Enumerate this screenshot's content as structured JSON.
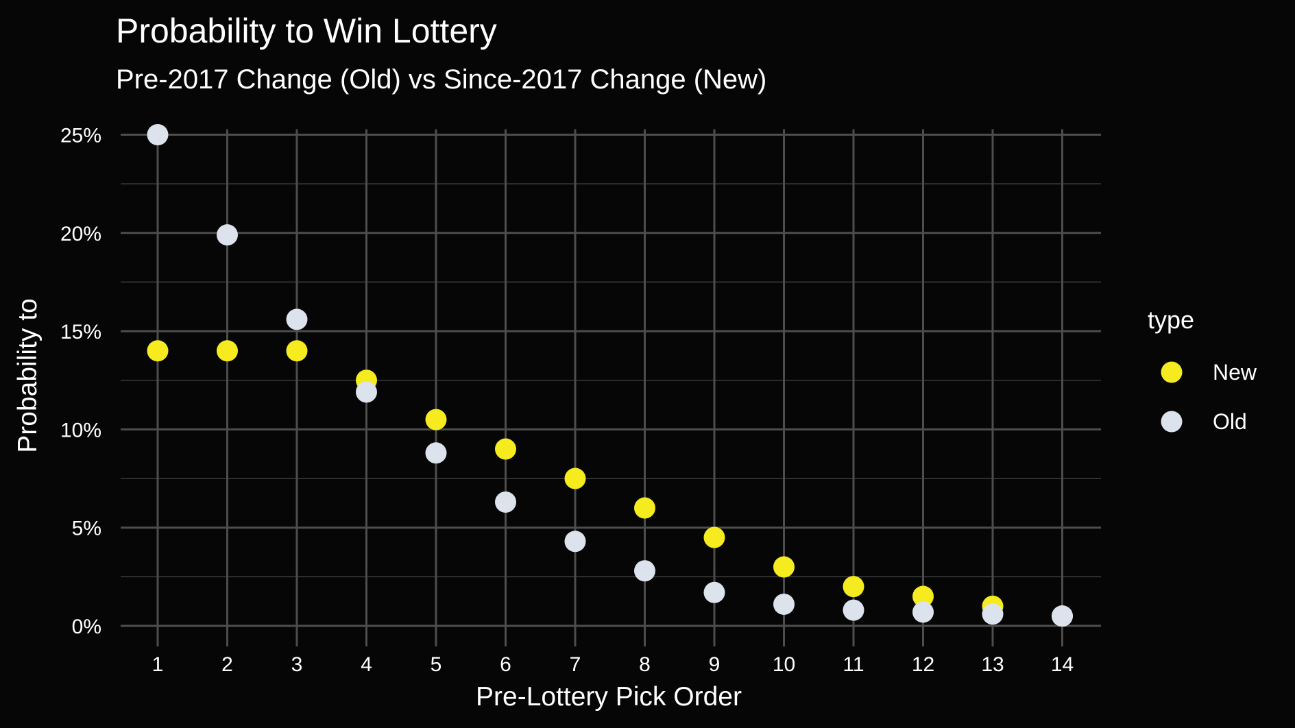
{
  "chart_data": {
    "type": "scatter",
    "title": "Probability to Win Lottery",
    "subtitle": "Pre-2017 Change (Old) vs Since-2017 Change (New)",
    "xlabel": "Pre-Lottery Pick Order",
    "ylabel": "Probability to",
    "x": [
      1,
      2,
      3,
      4,
      5,
      6,
      7,
      8,
      9,
      10,
      11,
      12,
      13,
      14
    ],
    "x_ticks": [
      "1",
      "2",
      "3",
      "4",
      "5",
      "6",
      "7",
      "8",
      "9",
      "10",
      "11",
      "12",
      "13",
      "14"
    ],
    "y_ticks": [
      "0%",
      "5%",
      "10%",
      "15%",
      "20%",
      "25%"
    ],
    "ylim": [
      0,
      25
    ],
    "xlim": [
      1,
      14
    ],
    "grid": true,
    "legend": {
      "title": "type",
      "placement": "right"
    },
    "series": [
      {
        "name": "New",
        "color": "#f5eb1f",
        "values": [
          14.0,
          14.0,
          14.0,
          12.5,
          10.5,
          9.0,
          7.5,
          6.0,
          4.5,
          3.0,
          2.0,
          1.5,
          1.0,
          0.5
        ]
      },
      {
        "name": "Old",
        "color": "#dde3ec",
        "values": [
          25.0,
          19.9,
          15.6,
          11.9,
          8.8,
          6.3,
          4.3,
          2.8,
          1.7,
          1.1,
          0.8,
          0.7,
          0.6,
          0.5
        ]
      }
    ]
  },
  "colors": {
    "background": "#060606",
    "grid": "#4d4d4d",
    "text": "#ffffff"
  }
}
